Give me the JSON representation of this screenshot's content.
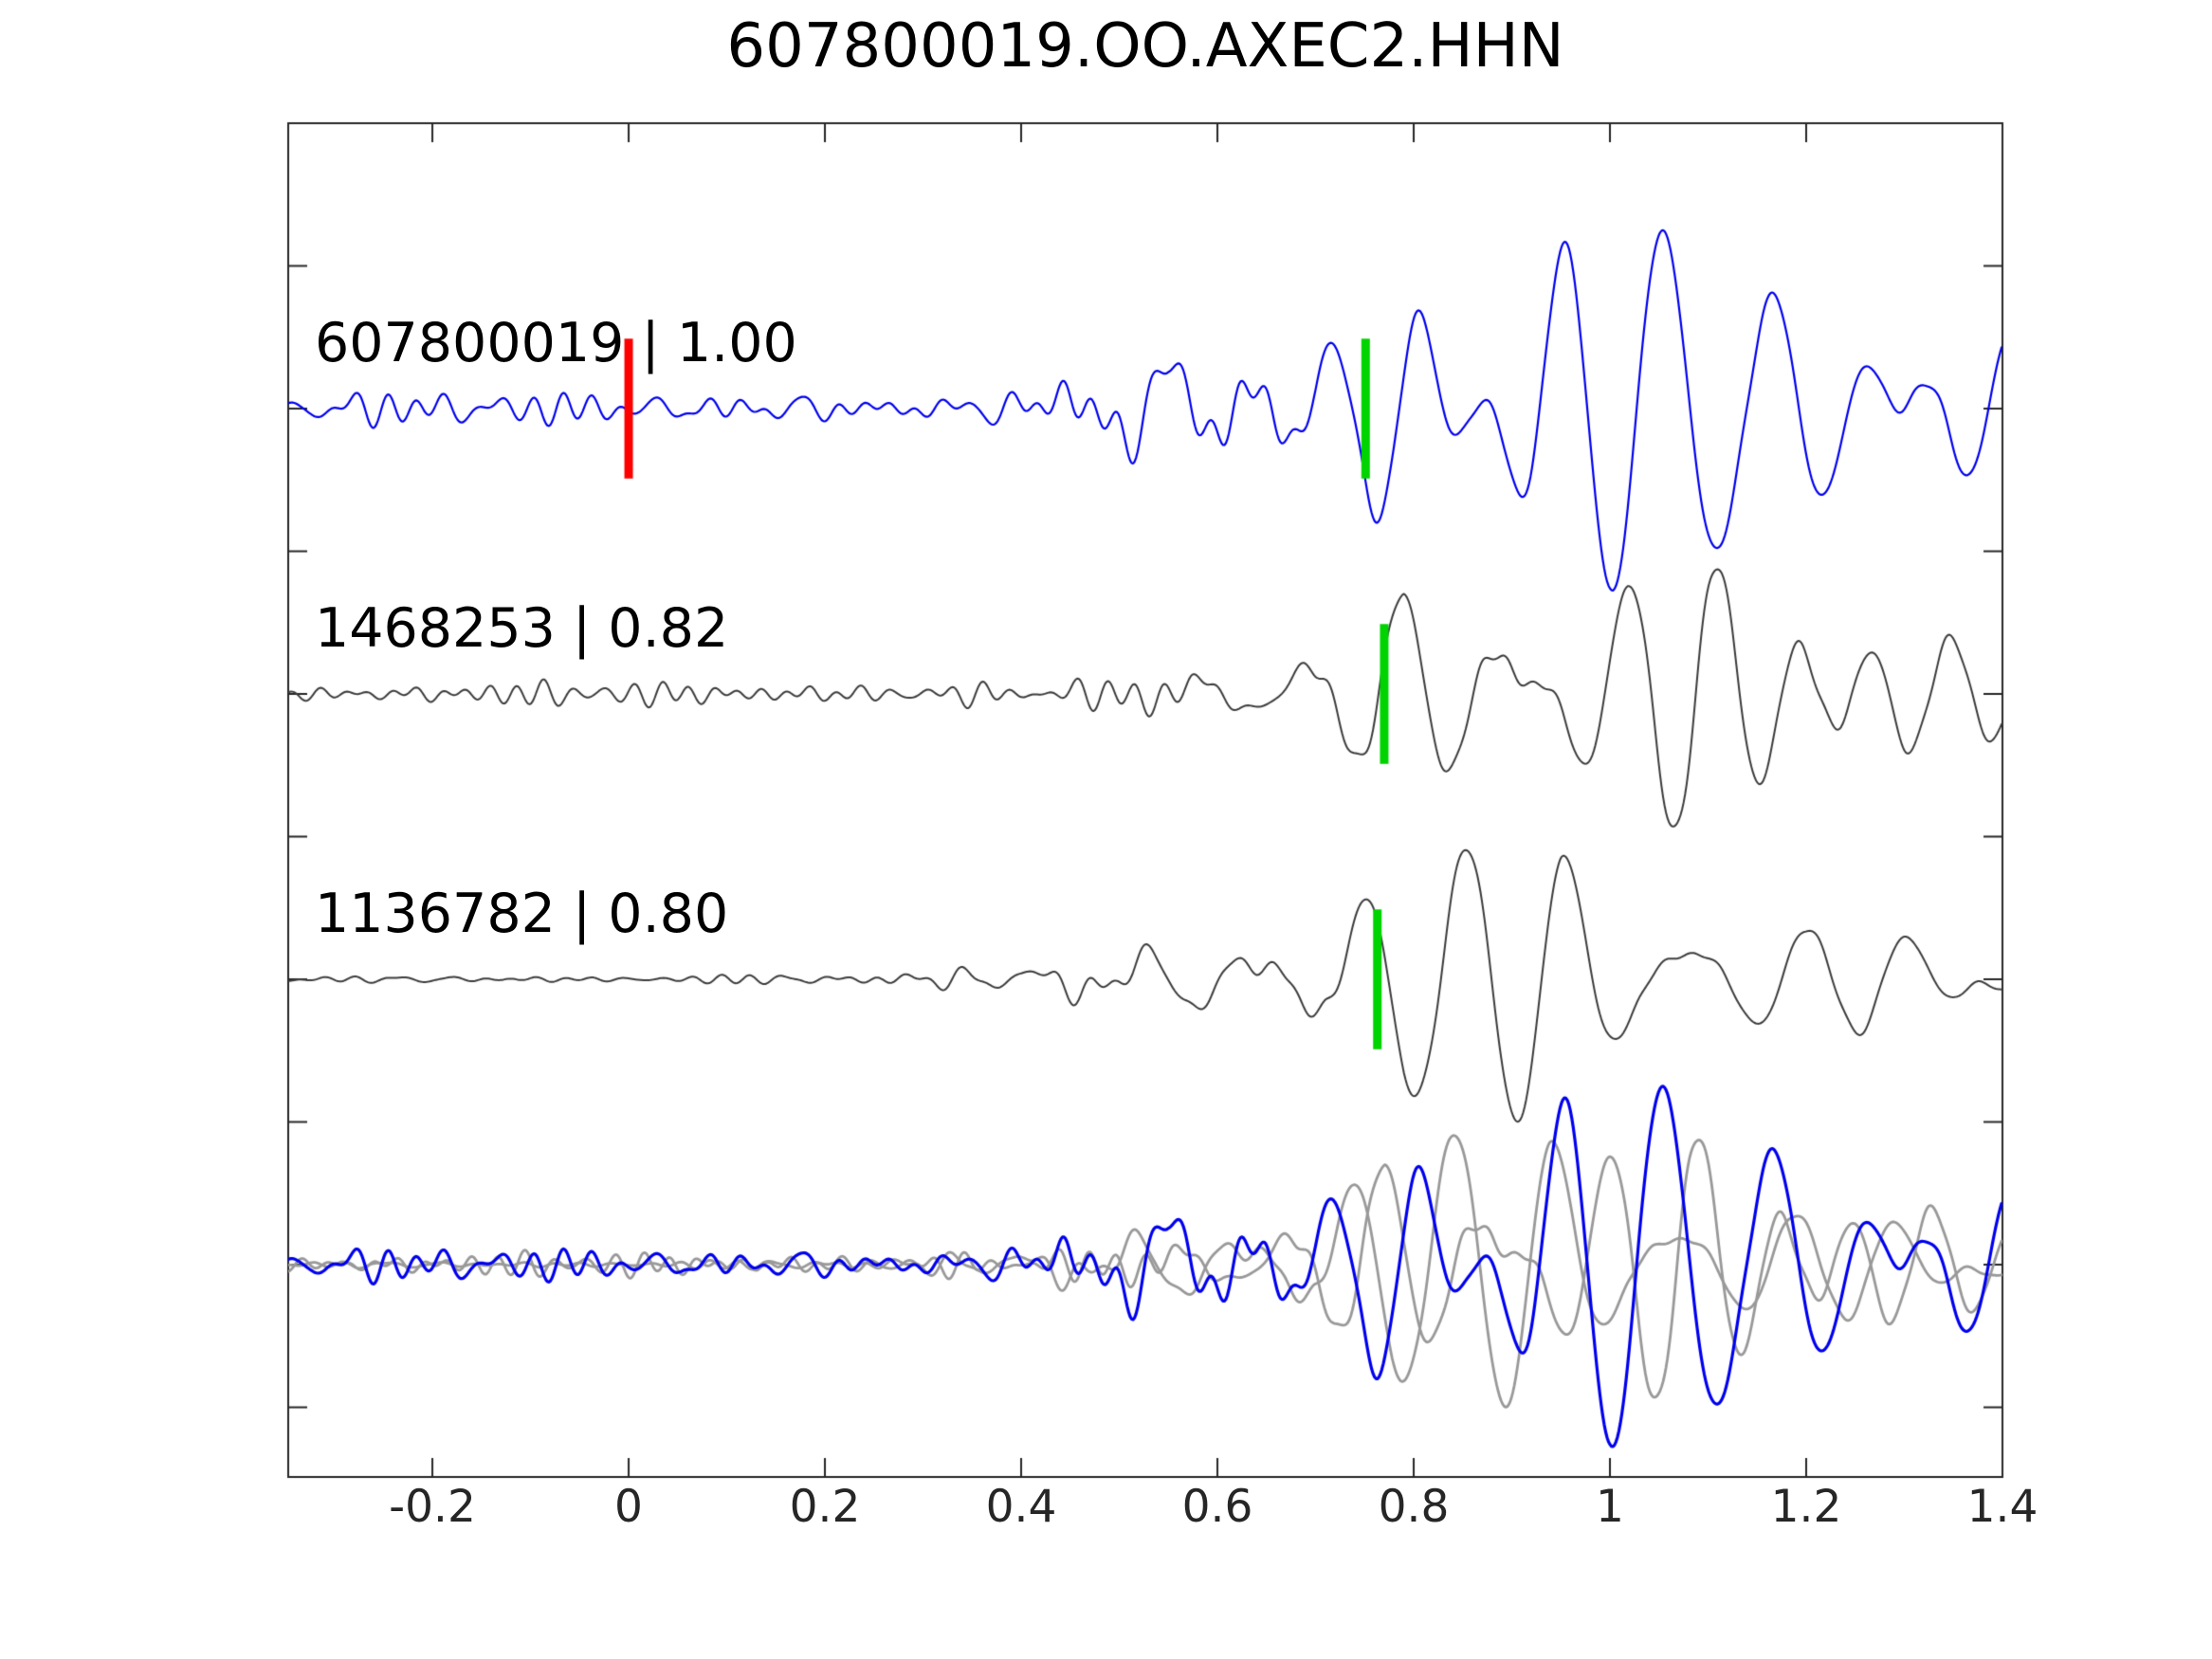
{
  "title": "607800019.OO.AXEC2.HHN",
  "colors": {
    "template_trace": "#0000ee",
    "detection_trace": "#3c3c3c",
    "overlay_gray": "#999999",
    "pick_red": "#ff0000",
    "pick_green": "#00d400",
    "axis": "#262626",
    "text": "#000000"
  },
  "chart_data": {
    "type": "line",
    "title": "607800019.OO.AXEC2.HHN",
    "xlabel": "",
    "ylabel": "",
    "grid": false,
    "legend": "none",
    "tick_direction": "in",
    "xlim": [
      -0.3469,
      1.4
    ],
    "ylim": [
      -0.744,
      4.0
    ],
    "x_ticks": [
      -0.2,
      0,
      0.2,
      0.4,
      0.6,
      0.8,
      1.0,
      1.2,
      1.4
    ],
    "x_tick_labels": [
      "-0.2",
      "0",
      "0.2",
      "0.4",
      "0.6",
      "0.8",
      "1",
      "1.2",
      "1.4"
    ],
    "y_ticks": [
      -0.5,
      0,
      0.5,
      1,
      1.5,
      2,
      2.5,
      3,
      3.5,
      4
    ],
    "y_tick_labels": [],
    "marker_half_height_units": 0.245,
    "marker_width_px": 9,
    "traces": [
      {
        "id": "607800019",
        "label": "607800019 | 1.00",
        "correlation": 1.0,
        "color": "#0000ee",
        "line_width": 2.2,
        "row_offset": 3,
        "seed": 97,
        "noise_env": [
          [
            -0.35,
            0.05
          ],
          [
            0.1,
            0.048
          ],
          [
            0.3,
            0.055
          ],
          [
            0.42,
            0.075
          ],
          [
            0.55,
            0.085
          ],
          [
            0.68,
            0.075
          ],
          [
            0.78,
            0.035
          ],
          [
            1.0,
            0.02
          ],
          [
            1.4,
            0.015
          ]
        ],
        "signal_env": [
          [
            0.4,
            0.0
          ],
          [
            0.47,
            0.1
          ],
          [
            0.55,
            0.22
          ],
          [
            0.62,
            0.12
          ],
          [
            0.7,
            0.14
          ],
          [
            0.74,
            0.3
          ],
          [
            0.78,
            0.42
          ],
          [
            0.84,
            0.38
          ],
          [
            0.92,
            0.5
          ],
          [
            1.0,
            0.45
          ],
          [
            1.08,
            0.52
          ],
          [
            1.16,
            0.38
          ],
          [
            1.25,
            0.33
          ],
          [
            1.33,
            0.33
          ],
          [
            1.4,
            0.28
          ]
        ],
        "markers": [
          {
            "name": "reference-pick",
            "color": "#ff0000",
            "t": 0.0
          },
          {
            "name": "phase-pick",
            "color": "#00d400",
            "t": 0.751
          }
        ]
      },
      {
        "id": "1468253",
        "label": "1468253 | 0.82",
        "correlation": 0.82,
        "color": "#3c3c3c",
        "line_width": 2.0,
        "row_offset": 2,
        "seed": 23,
        "noise_env": [
          [
            -0.35,
            0.032
          ],
          [
            0.2,
            0.035
          ],
          [
            0.45,
            0.055
          ],
          [
            0.6,
            0.06
          ],
          [
            0.75,
            0.03
          ],
          [
            1.0,
            0.02
          ],
          [
            1.4,
            0.015
          ]
        ],
        "signal_env": [
          [
            0.42,
            0.0
          ],
          [
            0.52,
            0.09
          ],
          [
            0.62,
            0.13
          ],
          [
            0.7,
            0.16
          ],
          [
            0.75,
            0.3
          ],
          [
            0.79,
            0.42
          ],
          [
            0.86,
            0.35
          ],
          [
            0.93,
            0.48
          ],
          [
            1.02,
            0.42
          ],
          [
            1.1,
            0.45
          ],
          [
            1.2,
            0.33
          ],
          [
            1.3,
            0.35
          ],
          [
            1.4,
            0.26
          ]
        ],
        "markers": [
          {
            "name": "phase-pick",
            "color": "#00d400",
            "t": 0.77
          }
        ]
      },
      {
        "id": "1136782",
        "label": "1136782 | 0.80",
        "correlation": 0.8,
        "color": "#3c3c3c",
        "line_width": 2.0,
        "row_offset": 1,
        "seed": 55,
        "noise_env": [
          [
            -0.35,
            0.013
          ],
          [
            0.05,
            0.016
          ],
          [
            0.12,
            0.035
          ],
          [
            0.3,
            0.032
          ],
          [
            0.42,
            0.05
          ],
          [
            0.55,
            0.05
          ],
          [
            0.7,
            0.04
          ],
          [
            0.85,
            0.02
          ],
          [
            1.4,
            0.015
          ]
        ],
        "signal_env": [
          [
            0.4,
            0.0
          ],
          [
            0.46,
            0.12
          ],
          [
            0.55,
            0.18
          ],
          [
            0.64,
            0.14
          ],
          [
            0.71,
            0.16
          ],
          [
            0.75,
            0.28
          ],
          [
            0.79,
            0.4
          ],
          [
            0.87,
            0.45
          ],
          [
            0.95,
            0.55
          ],
          [
            1.03,
            0.4
          ],
          [
            1.1,
            0.42
          ],
          [
            1.2,
            0.3
          ],
          [
            1.3,
            0.32
          ],
          [
            1.4,
            0.25
          ]
        ],
        "markers": [
          {
            "name": "phase-pick",
            "color": "#00d400",
            "t": 0.763
          }
        ]
      }
    ],
    "overlay": {
      "row_offset": 0,
      "members": [
        {
          "trace_index": 1,
          "color": "#999999",
          "line_width": 2.8,
          "time_shift": -0.019
        },
        {
          "trace_index": 2,
          "color": "#999999",
          "line_width": 2.8,
          "time_shift": -0.012
        },
        {
          "trace_index": 0,
          "color": "#0000ee",
          "line_width": 3.2,
          "time_shift": 0.0
        }
      ]
    }
  }
}
